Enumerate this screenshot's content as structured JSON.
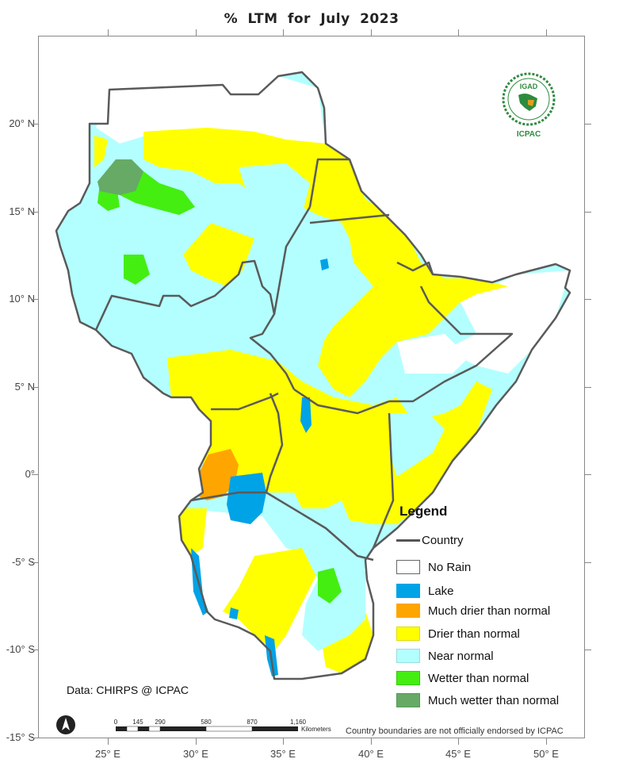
{
  "title": "% LTM   for   July  2023",
  "latitude_labels": [
    "20° N",
    "15° N",
    "10° N",
    "5° N",
    "0°",
    "-5° S",
    "-10° S",
    "-15° S"
  ],
  "longitude_labels": [
    "25° E",
    "30° E",
    "35° E",
    "40° E",
    "45° E",
    "50° E"
  ],
  "legend": {
    "heading": "Legend",
    "country_label": "Country",
    "items": [
      {
        "label": "No Rain",
        "color": "#ffffff"
      },
      {
        "label": "Lake",
        "color": "#00a3e6"
      },
      {
        "label": "Much drier than normal",
        "color": "#ffa500"
      },
      {
        "label": "Drier than normal",
        "color": "#ffff00"
      },
      {
        "label": "Near normal",
        "color": "#b3ffff"
      },
      {
        "label": "Wetter than normal",
        "color": "#44ee11"
      },
      {
        "label": "Much wetter than normal",
        "color": "#66aa66"
      }
    ]
  },
  "credit": "Data: CHIRPS @ ICPAC",
  "disclaimer": "Country boundaries are not officially endorsed by ICPAC",
  "scale_bar": {
    "labels": [
      "0",
      "145",
      "290",
      "580",
      "870",
      "1,160"
    ],
    "unit": "Kilometers"
  },
  "logo": {
    "top_text": "IGAD",
    "bottom_text": "ICPAC"
  },
  "colors": {
    "border": "#5a5a5a",
    "frame": "#888888"
  }
}
